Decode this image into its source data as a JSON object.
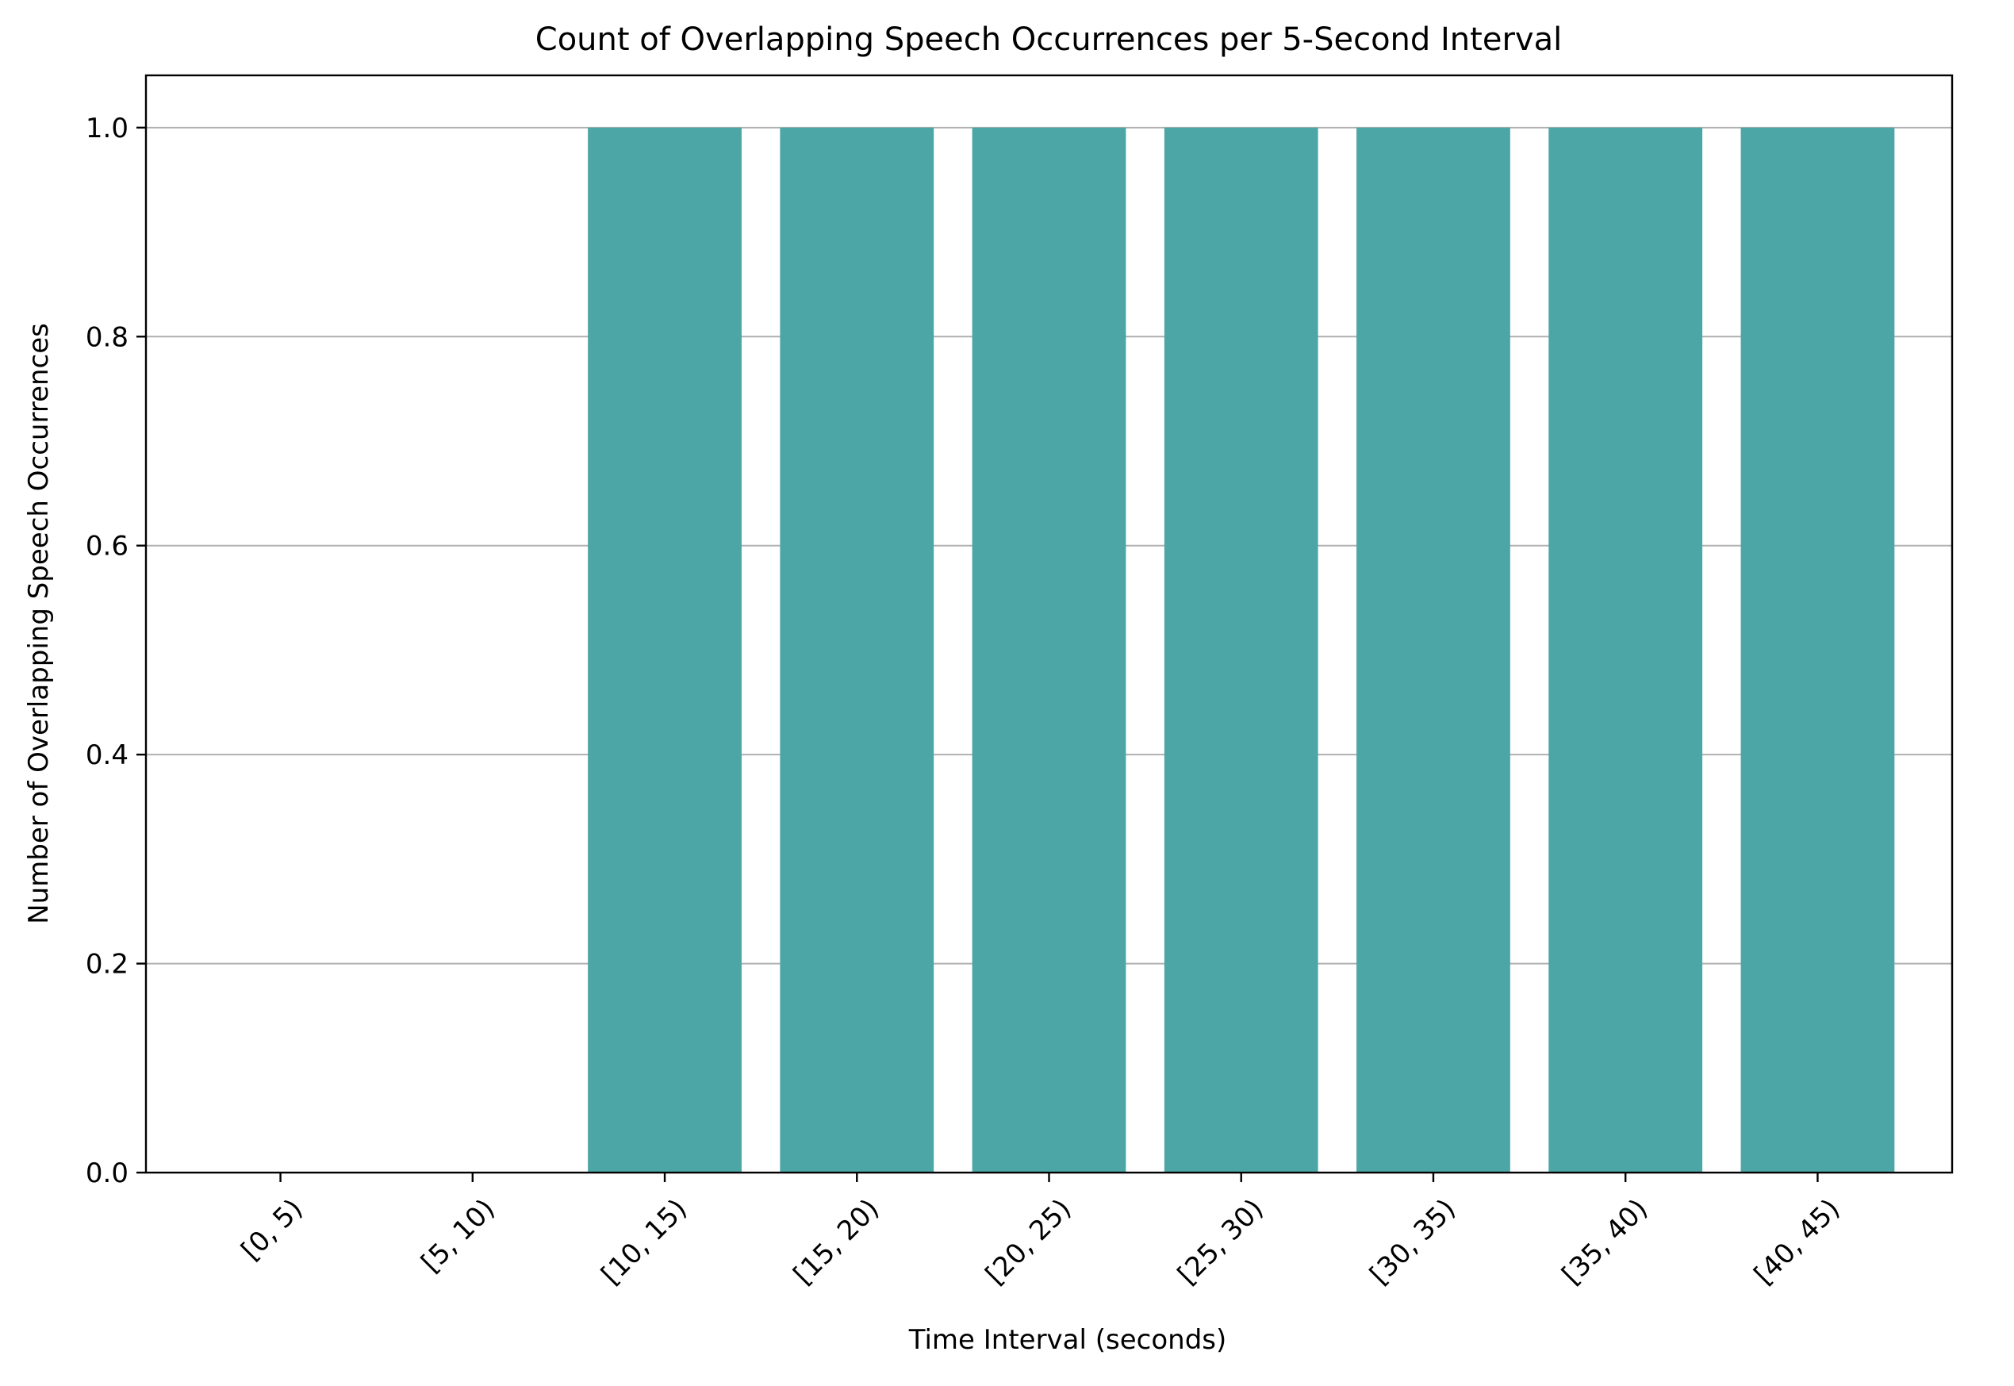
{
  "chart_data": {
    "type": "bar",
    "title": "Count of Overlapping Speech Occurrences per 5-Second Interval",
    "xlabel": "Time Interval (seconds)",
    "ylabel": "Number of Overlapping Speech Occurrences",
    "categories": [
      "[0, 5)",
      "[5, 10)",
      "[10, 15)",
      "[15, 20)",
      "[20, 25)",
      "[25, 30)",
      "[30, 35)",
      "[35, 40)",
      "[40, 45)"
    ],
    "values": [
      0,
      0,
      1,
      1,
      1,
      1,
      1,
      1,
      1
    ],
    "ylim": [
      0,
      1.05
    ],
    "yticks": [
      0.0,
      0.2,
      0.4,
      0.6,
      0.8,
      1.0
    ],
    "ytick_labels": [
      "0.0",
      "0.2",
      "0.4",
      "0.6",
      "0.8",
      "1.0"
    ],
    "grid": "y-axis only",
    "legend": "none",
    "bar_color": "#4da6a6",
    "grid_color": "#b0b0b0"
  }
}
